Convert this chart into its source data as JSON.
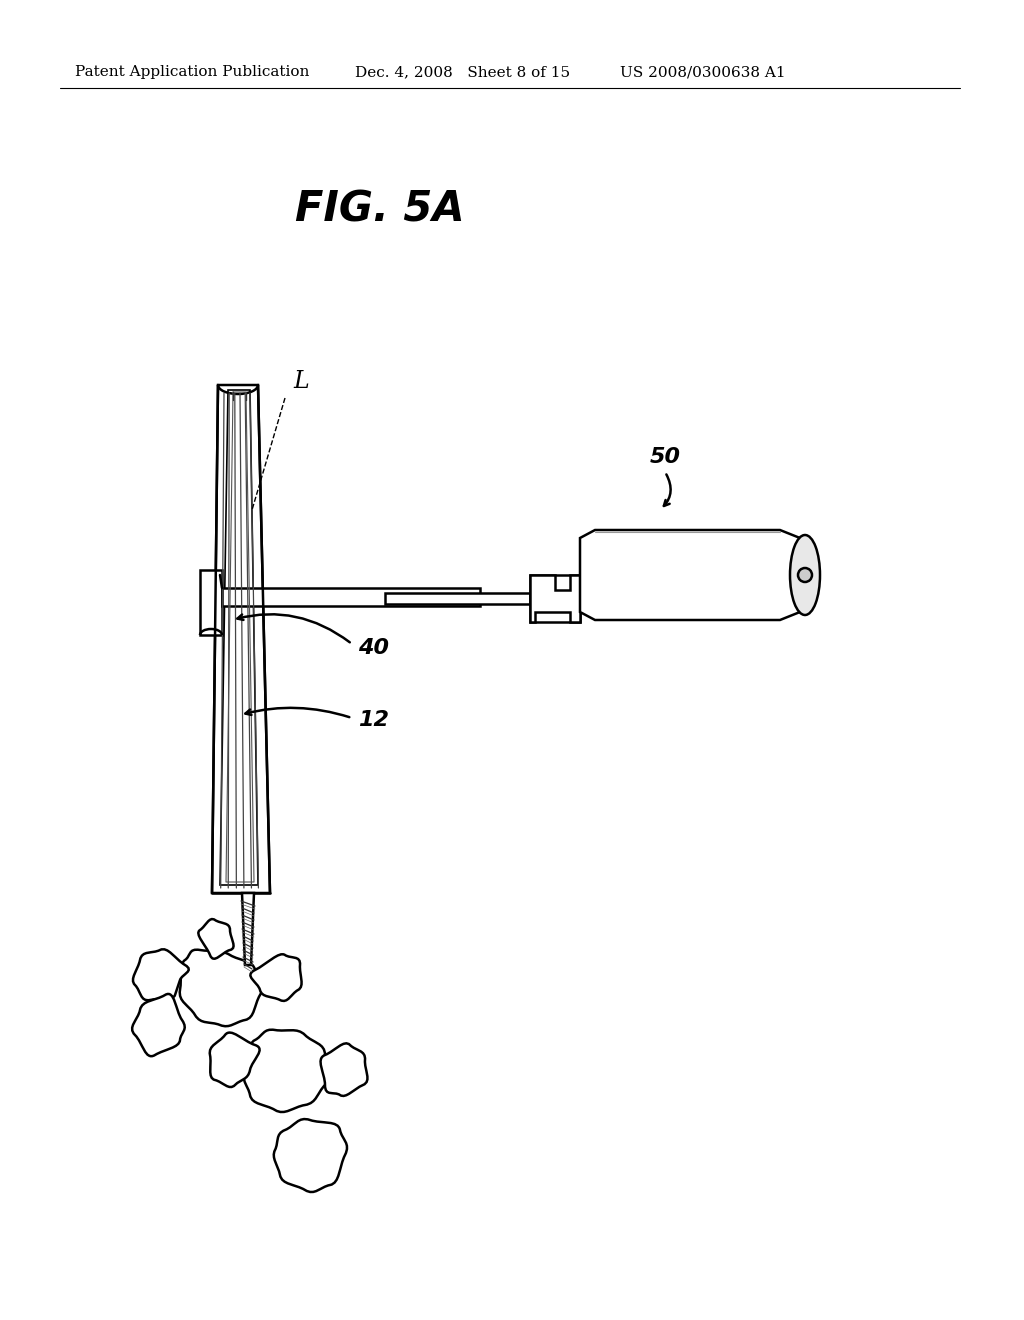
{
  "title": "FIG. 5A",
  "header_left": "Patent Application Publication",
  "header_mid": "Dec. 4, 2008   Sheet 8 of 15",
  "header_right": "US 2008/0300638 A1",
  "label_L": "L",
  "label_40": "40",
  "label_12": "12",
  "label_50": "50",
  "bg_color": "#ffffff",
  "line_color": "#000000",
  "title_fontsize": 30,
  "header_fontsize": 11
}
